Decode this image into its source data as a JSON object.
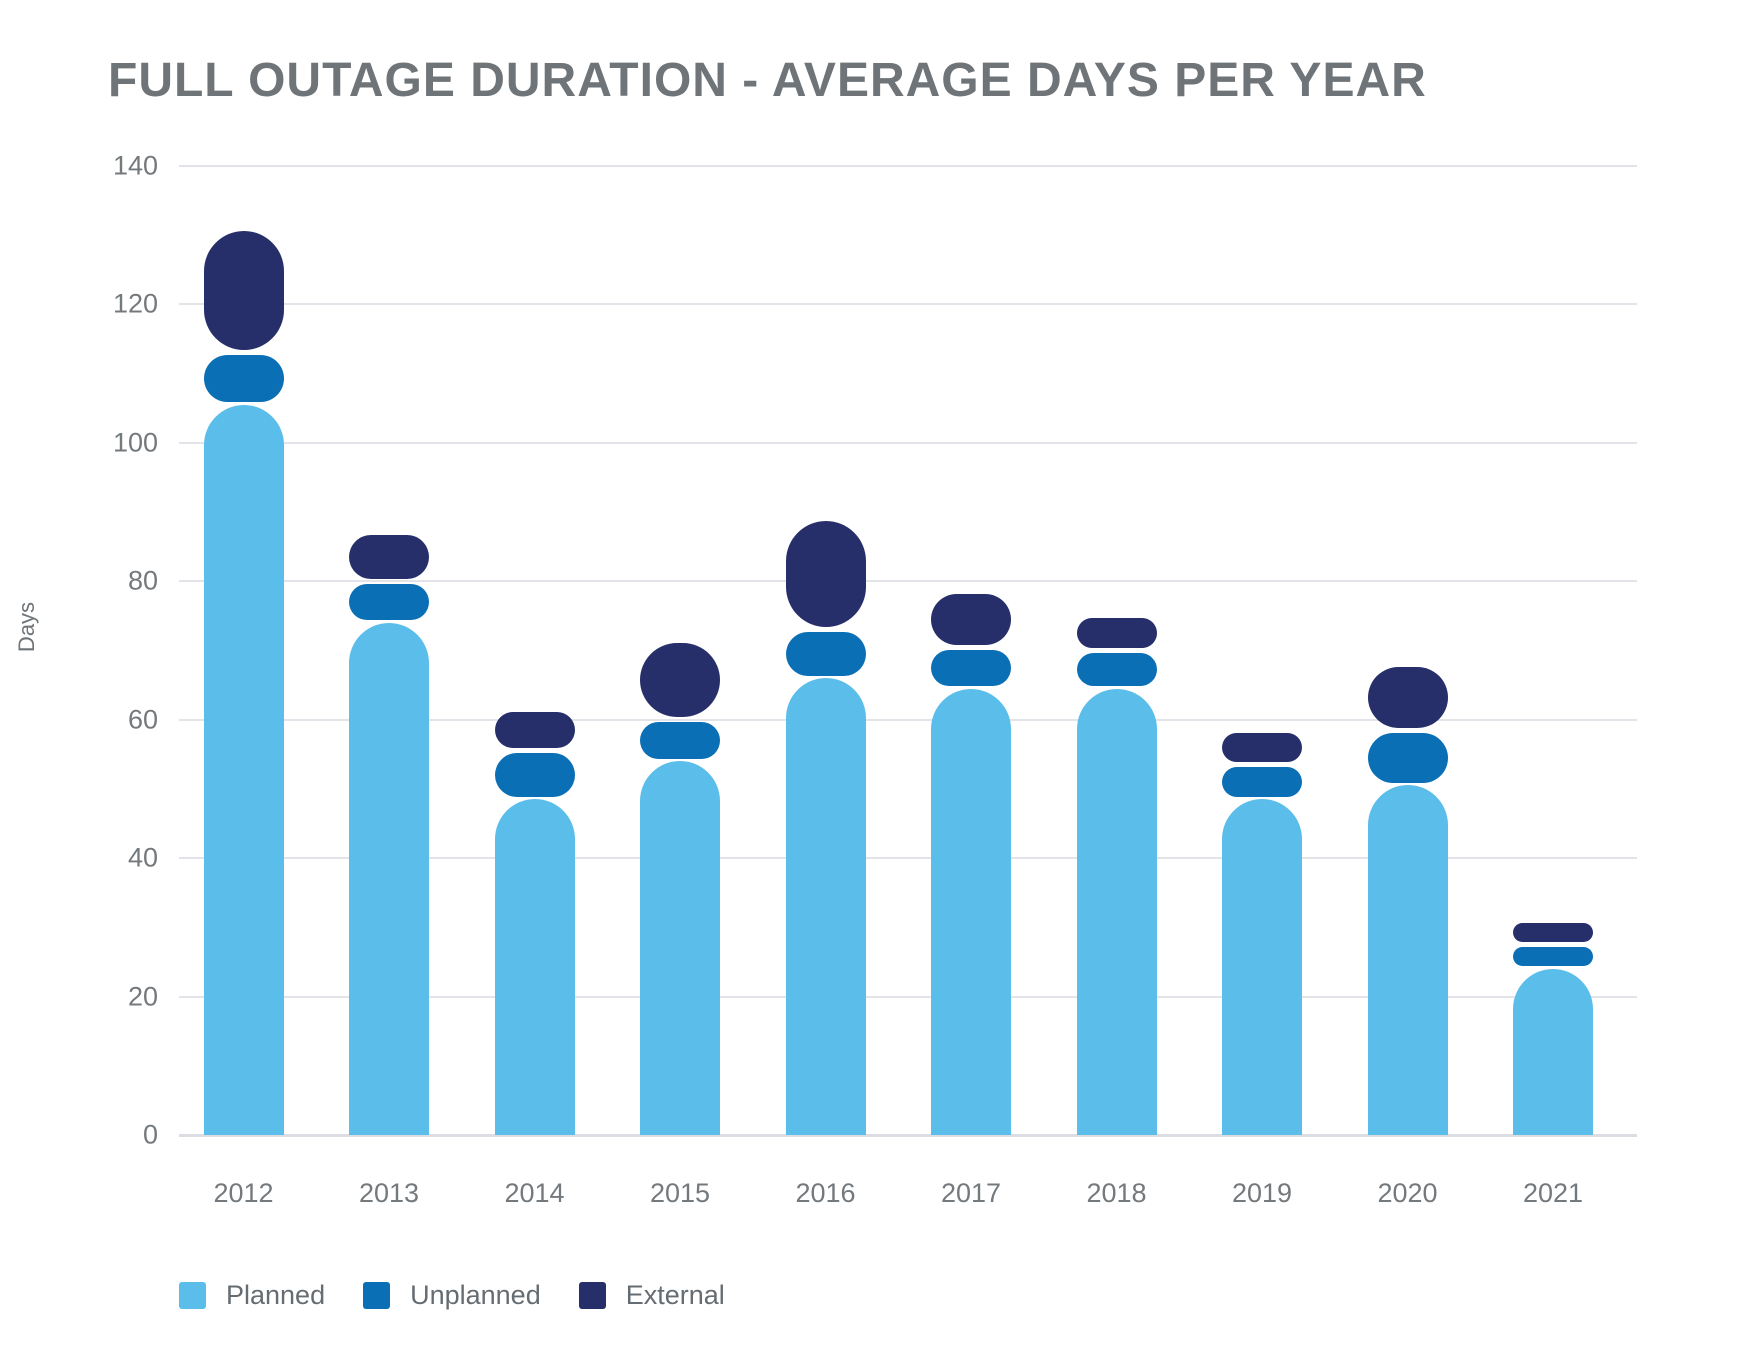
{
  "title": "FULL OUTAGE DURATION - AVERAGE DAYS PER YEAR",
  "chart_data": {
    "type": "bar",
    "stacked": true,
    "title": "FULL OUTAGE DURATION - AVERAGE DAYS PER YEAR",
    "xlabel": "",
    "ylabel": "Days",
    "ylim": [
      0,
      140
    ],
    "yticks": [
      0,
      20,
      40,
      60,
      80,
      100,
      120,
      140
    ],
    "grid": "horizontal",
    "legend_position": "bottom-left",
    "categories": [
      "2012",
      "2013",
      "2014",
      "2015",
      "2016",
      "2017",
      "2018",
      "2019",
      "2020",
      "2021"
    ],
    "series": [
      {
        "name": "Planned",
        "color": "#5BBDE9",
        "values": [
          105.5,
          74,
          48.5,
          54,
          66,
          64.5,
          64.5,
          48.5,
          50.5,
          24
        ]
      },
      {
        "name": "Unplanned",
        "color": "#0A6FB5",
        "values": [
          7.5,
          6,
          7,
          6,
          7,
          6,
          5.5,
          5,
          8,
          3.5
        ]
      },
      {
        "name": "External",
        "color": "#272F6B",
        "values": [
          18,
          7,
          6,
          11.5,
          16,
          8,
          5,
          5,
          9.5,
          3.5
        ]
      }
    ],
    "totals": [
      131,
      87,
      61.5,
      71.5,
      89,
      78.5,
      75,
      58.5,
      68,
      31
    ]
  },
  "colors": {
    "title_text": "#6E7478",
    "axis_text": "#74797D",
    "legend_text": "#656C72",
    "gridline": "#E3E4E9",
    "background": "#FFFFFF"
  }
}
